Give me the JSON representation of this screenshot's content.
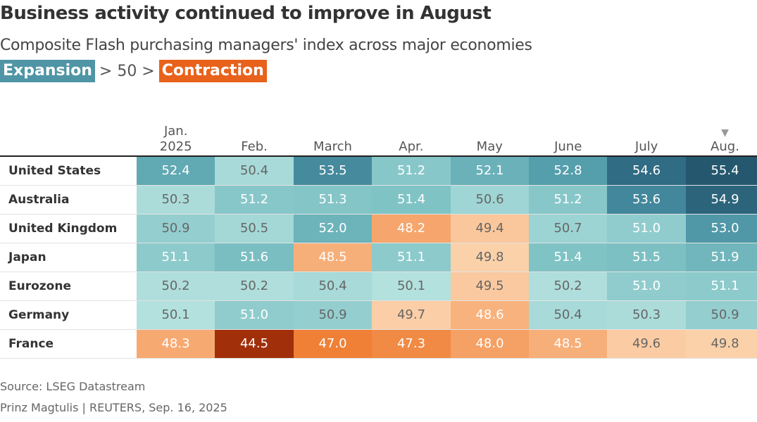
{
  "header": {
    "title": "Business activity continued to improve in August",
    "subtitle": "Composite Flash purchasing managers' index across major economies"
  },
  "legend": {
    "expansion_label": "Expansion",
    "middle_label": "> 50 >",
    "contraction_label": "Contraction",
    "expansion_color": "#4f95a6",
    "contraction_color": "#e8621b"
  },
  "footer": {
    "source": "Source: LSEG Datastream",
    "credit": "Prinz Magtulis | REUTERS, Sep. 16, 2025"
  },
  "chart_data": {
    "type": "heatmap",
    "title": "Business activity continued to improve in August",
    "subtitle": "Composite Flash purchasing managers' index across major economies",
    "threshold": 50,
    "columns": [
      {
        "line1": "Jan.",
        "line2": "2025",
        "marker": ""
      },
      {
        "line1": "",
        "line2": "Feb.",
        "marker": ""
      },
      {
        "line1": "",
        "line2": "March",
        "marker": ""
      },
      {
        "line1": "",
        "line2": "Apr.",
        "marker": ""
      },
      {
        "line1": "",
        "line2": "May",
        "marker": ""
      },
      {
        "line1": "",
        "line2": "June",
        "marker": ""
      },
      {
        "line1": "",
        "line2": "July",
        "marker": ""
      },
      {
        "line1": "",
        "line2": "Aug.",
        "marker": "▼"
      }
    ],
    "rows": [
      {
        "label": "United States",
        "values": [
          "52.4",
          "50.4",
          "53.5",
          "51.2",
          "52.1",
          "52.8",
          "54.6",
          "55.4"
        ]
      },
      {
        "label": "Australia",
        "values": [
          "50.3",
          "51.2",
          "51.3",
          "51.4",
          "50.6",
          "51.2",
          "53.6",
          "54.9"
        ]
      },
      {
        "label": "United Kingdom",
        "values": [
          "50.9",
          "50.5",
          "52.0",
          "48.2",
          "49.4",
          "50.7",
          "51.0",
          "53.0"
        ]
      },
      {
        "label": "Japan",
        "values": [
          "51.1",
          "51.6",
          "48.5",
          "51.1",
          "49.8",
          "51.4",
          "51.5",
          "51.9"
        ]
      },
      {
        "label": "Eurozone",
        "values": [
          "50.2",
          "50.2",
          "50.4",
          "50.1",
          "49.5",
          "50.2",
          "51.0",
          "51.1"
        ]
      },
      {
        "label": "Germany",
        "values": [
          "50.1",
          "51.0",
          "50.9",
          "49.7",
          "48.6",
          "50.4",
          "50.3",
          "50.9"
        ]
      },
      {
        "label": "France",
        "values": [
          "48.3",
          "44.5",
          "47.0",
          "47.3",
          "48.0",
          "48.5",
          "49.6",
          "49.8"
        ]
      }
    ]
  }
}
